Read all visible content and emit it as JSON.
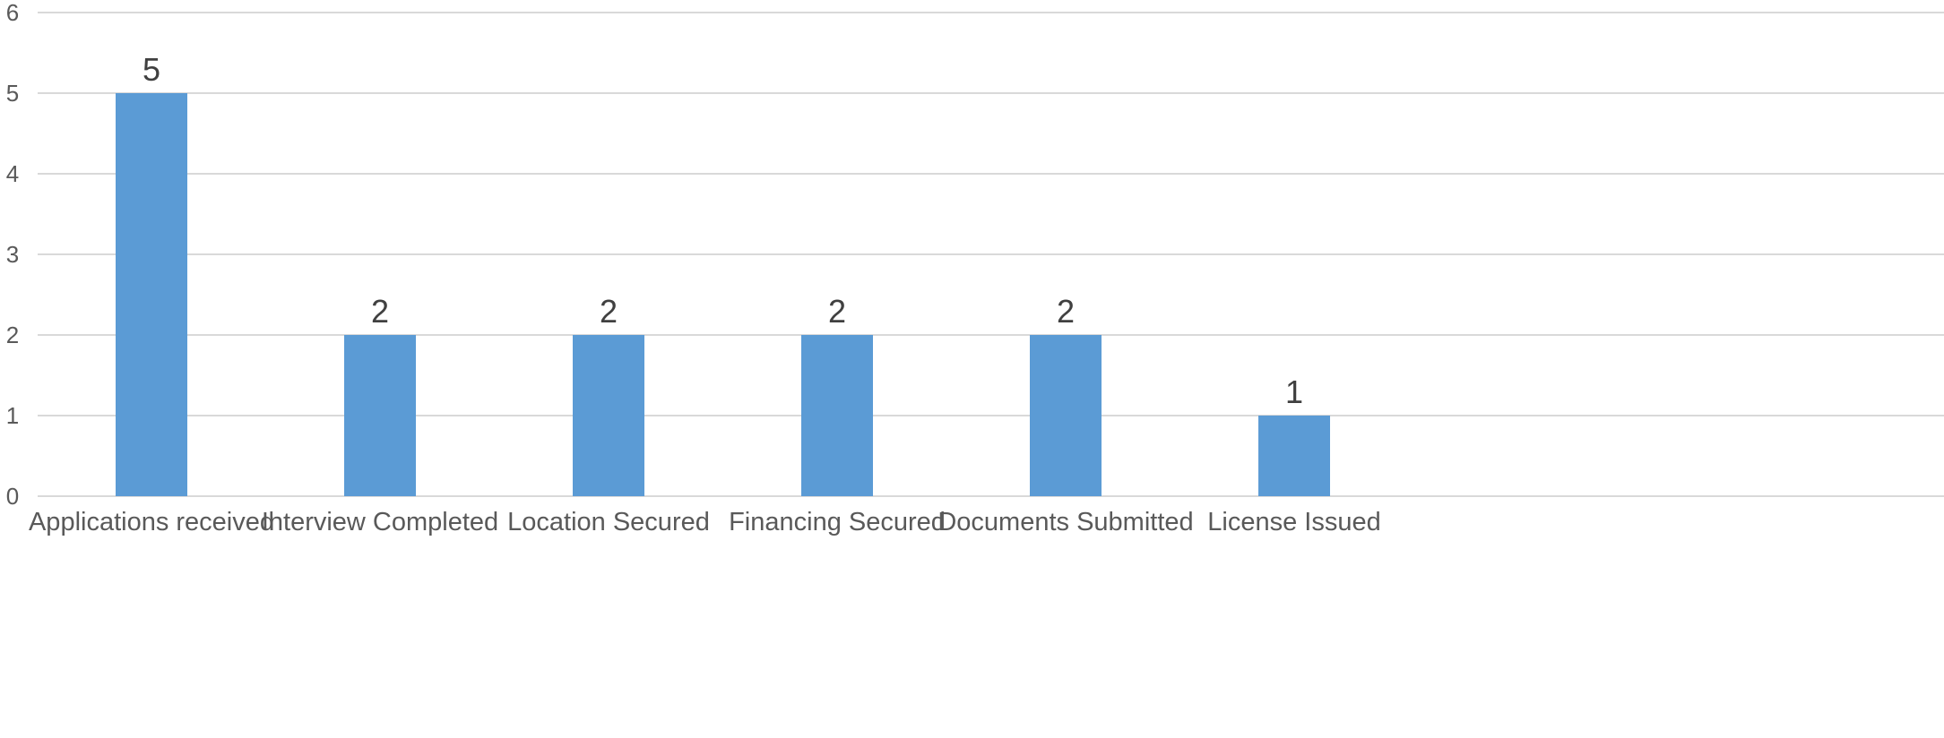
{
  "chart_data": {
    "type": "bar",
    "categories": [
      "Applications received",
      "Interview Completed",
      "Location Secured",
      "Financing Secured",
      "Documents Submitted",
      "License Issued"
    ],
    "values": [
      5,
      2,
      2,
      2,
      2,
      1
    ],
    "data_labels": [
      "5",
      "2",
      "2",
      "2",
      "2",
      "1"
    ],
    "y_ticks": [
      "0",
      "1",
      "2",
      "3",
      "4",
      "5",
      "6"
    ],
    "ylim": [
      0,
      6
    ],
    "title": "",
    "xlabel": "",
    "ylabel": "",
    "grid": true,
    "legend": "none",
    "bar_color": "#5b9bd5"
  }
}
